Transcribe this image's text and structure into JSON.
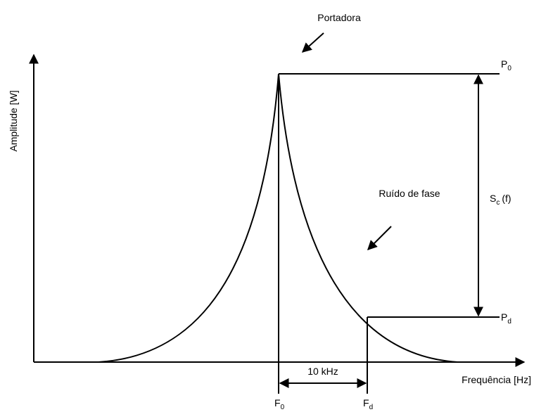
{
  "labels": {
    "carrier": "Portadora",
    "p0": {
      "main": "P",
      "sub": "0"
    },
    "pd": {
      "main": "P",
      "sub": "d"
    },
    "sc": {
      "main": "S",
      "sub": "c",
      "suffix": "(f)"
    },
    "y_axis": "Amplitude [W]",
    "x_axis": "Frequência [Hz]",
    "phase_noise": "Ruído de fase",
    "offset": "10 kHz",
    "f0": {
      "main": "F",
      "sub": "0"
    },
    "fd": {
      "main": "F",
      "sub": "d"
    }
  }
}
